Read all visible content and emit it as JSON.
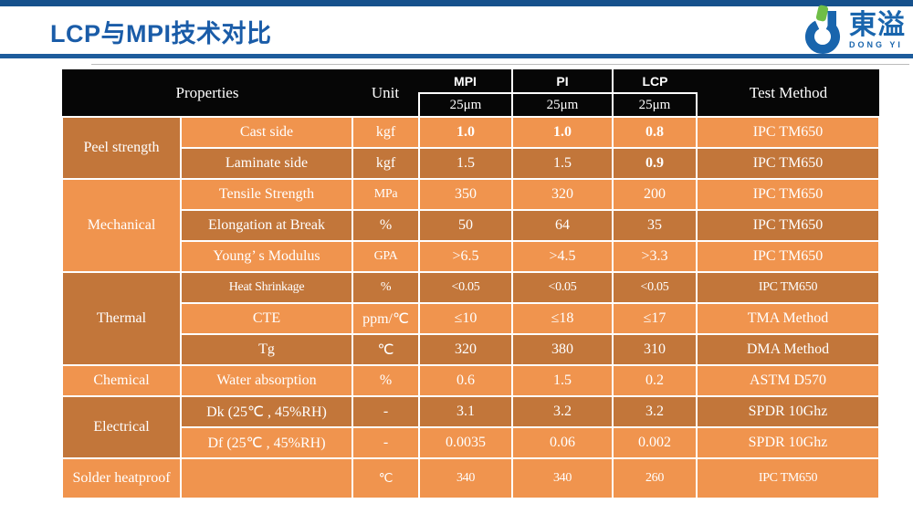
{
  "slide": {
    "title": "LCP与MPI技术对比",
    "logo": {
      "name_cn": "東溢",
      "name_en": "DONG YI"
    },
    "colors": {
      "accent_blue": "#1A5CA8",
      "bar_blue": "#16518C",
      "header_black": "#060606",
      "row_light": "#F0944E",
      "row_dark": "#C2763A",
      "logo_blue": "#1965AD",
      "logo_green": "#6FBE47"
    }
  },
  "table": {
    "header": {
      "properties": "Properties",
      "unit": "Unit",
      "materials": [
        "MPI",
        "PI",
        "LCP"
      ],
      "thickness": [
        "25μm",
        "25μm",
        "25μm"
      ],
      "test_method": "Test Method"
    },
    "groups": [
      {
        "label": "Peel strength",
        "span": 2,
        "shade": "dark"
      },
      {
        "label": "Mechanical",
        "span": 3,
        "shade": "light"
      },
      {
        "label": "Thermal",
        "span": 3,
        "shade": "dark"
      },
      {
        "label": "Chemical",
        "span": 1,
        "shade": "light"
      },
      {
        "label": "Electrical",
        "span": 2,
        "shade": "dark"
      },
      {
        "label": "Solder heatproof",
        "span": 1,
        "shade": "light"
      }
    ],
    "rows": [
      {
        "property": "Cast side",
        "unit": "kgf",
        "values": [
          "1.0",
          "1.0",
          "0.8"
        ],
        "bold": [
          true,
          true,
          true
        ],
        "test": "IPC TM650",
        "shade": "light"
      },
      {
        "property": "Laminate side",
        "unit": "kgf",
        "values": [
          "1.5",
          "1.5",
          "0.9"
        ],
        "bold": [
          false,
          false,
          true
        ],
        "test": "IPC TM650",
        "shade": "dark"
      },
      {
        "property": "Tensile Strength",
        "unit": "MPa",
        "values": [
          "350",
          "320",
          "200"
        ],
        "test": "IPC TM650",
        "shade": "light",
        "narrow_unit": true
      },
      {
        "property": "Elongation at Break",
        "unit": "%",
        "values": [
          "50",
          "64",
          "35"
        ],
        "test": "IPC TM650",
        "shade": "dark"
      },
      {
        "property": "Young’ s Modulus",
        "unit": "GPA",
        "values": [
          ">6.5",
          ">4.5",
          ">3.3"
        ],
        "test": "IPC TM650",
        "shade": "light",
        "narrow_unit": true
      },
      {
        "property": "Heat Shrinkage",
        "unit": "%",
        "values": [
          "<0.05",
          "<0.05",
          "<0.05"
        ],
        "test": "IPC TM650",
        "shade": "dark",
        "narrow_all": true
      },
      {
        "property": "CTE",
        "unit": "ppm/℃",
        "values": [
          "≤10",
          "≤18",
          "≤17"
        ],
        "test": "TMA Method",
        "shade": "light"
      },
      {
        "property": "Tg",
        "unit": "℃",
        "values": [
          "320",
          "380",
          "310"
        ],
        "test": "DMA Method",
        "shade": "dark"
      },
      {
        "property": "Water absorption",
        "unit": "%",
        "values": [
          "0.6",
          "1.5",
          "0.2"
        ],
        "test": "ASTM D570",
        "shade": "light"
      },
      {
        "property": "Dk (25℃ , 45%RH)",
        "unit": "-",
        "values": [
          "3.1",
          "3.2",
          "3.2"
        ],
        "test": "SPDR 10Ghz",
        "shade": "dark"
      },
      {
        "property": "Df (25℃ , 45%RH)",
        "unit": "-",
        "values": [
          "0.0035",
          "0.06",
          "0.002"
        ],
        "test": "SPDR 10Ghz",
        "shade": "light"
      },
      {
        "property": "",
        "unit": "℃",
        "values": [
          "340",
          "340",
          "260"
        ],
        "test": "IPC TM650",
        "shade": "light",
        "narrow_all": true,
        "tall": true
      }
    ]
  }
}
